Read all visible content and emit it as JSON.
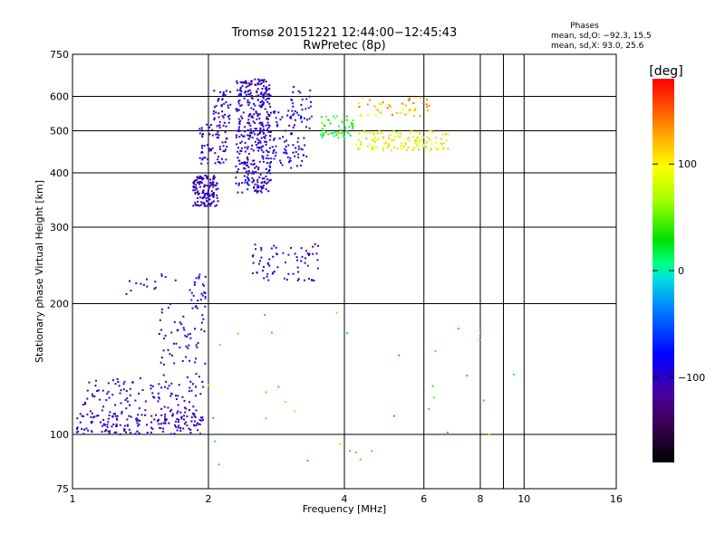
{
  "header": {
    "title_line1": "Tromsø 20151221 12:44:00−12:45:43",
    "title_line2": "RwPretec (8p)"
  },
  "phase_info": {
    "heading": "Phases",
    "line_o": "mean, sd,O: −92.3, 15.5",
    "line_x": "mean, sd,X:  93.0, 25.6"
  },
  "colorbar": {
    "unit": "[deg]",
    "ticks": [
      {
        "value": 100,
        "label": "100"
      },
      {
        "value": 0,
        "label": "0"
      },
      {
        "value": -100,
        "label": "−100"
      }
    ],
    "range": [
      -180,
      180
    ]
  },
  "chart_data": {
    "type": "scatter",
    "title": "Tromsø 20151221 12:44:00−12:45:43",
    "subtitle": "RwPretec (8p)",
    "xlabel": "Frequency [MHz]",
    "ylabel": "Stationary phase Virtual Height [km]",
    "x_scale": "log",
    "y_scale": "log",
    "xlim": [
      1,
      16
    ],
    "ylim": [
      75,
      750
    ],
    "x_ticks": [
      {
        "value": 1,
        "label": "1"
      },
      {
        "value": 2,
        "label": "2"
      },
      {
        "value": 4,
        "label": "4"
      },
      {
        "value": 6,
        "label": "6"
      },
      {
        "value": 8,
        "label": "8"
      },
      {
        "value": 10,
        "label": "10"
      },
      {
        "value": 16,
        "label": "16"
      }
    ],
    "x_gridlines": [
      1,
      2,
      4,
      6,
      8,
      9,
      10,
      16
    ],
    "y_ticks": [
      {
        "value": 75,
        "label": "75"
      },
      {
        "value": 100,
        "label": "100"
      },
      {
        "value": 200,
        "label": "200"
      },
      {
        "value": 300,
        "label": "300"
      },
      {
        "value": 400,
        "label": "400"
      },
      {
        "value": 500,
        "label": "500"
      },
      {
        "value": 600,
        "label": "600"
      },
      {
        "value": 750,
        "label": "750"
      }
    ],
    "y_gridlines": [
      100,
      200,
      300,
      400,
      500,
      600
    ],
    "grid": true,
    "colorscale": "rainbow phase [deg]",
    "clusters": [
      {
        "x_range": [
          1.02,
          1.95
        ],
        "y_range": [
          100,
          112
        ],
        "phase": -105,
        "n": 160
      },
      {
        "x_range": [
          1.05,
          1.95
        ],
        "y_range": [
          110,
          135
        ],
        "phase": -100,
        "n": 120
      },
      {
        "x_range": [
          1.55,
          1.98
        ],
        "y_range": [
          135,
          200
        ],
        "phase": -100,
        "n": 60
      },
      {
        "x_range": [
          1.82,
          1.98
        ],
        "y_range": [
          195,
          235
        ],
        "phase": -80,
        "n": 25
      },
      {
        "x_range": [
          1.85,
          2.1
        ],
        "y_range": [
          335,
          395
        ],
        "phase": -105,
        "n": 140
      },
      {
        "x_range": [
          1.9,
          2.2
        ],
        "y_range": [
          420,
          520
        ],
        "phase": -100,
        "n": 70
      },
      {
        "x_range": [
          2.05,
          2.25
        ],
        "y_range": [
          520,
          620
        ],
        "phase": -100,
        "n": 40
      },
      {
        "x_range": [
          2.3,
          2.75
        ],
        "y_range": [
          360,
          660
        ],
        "phase": -100,
        "n": 380
      },
      {
        "x_range": [
          2.7,
          3.3
        ],
        "y_range": [
          410,
          560
        ],
        "phase": -95,
        "n": 90
      },
      {
        "x_range": [
          3.05,
          3.4
        ],
        "y_range": [
          500,
          640
        ],
        "phase": -90,
        "n": 30
      },
      {
        "x_range": [
          3.5,
          4.2
        ],
        "y_range": [
          480,
          540
        ],
        "phase": 30,
        "n": 55
      },
      {
        "x_range": [
          4.2,
          6.8
        ],
        "y_range": [
          450,
          500
        ],
        "phase": 90,
        "n": 130
      },
      {
        "x_range": [
          4.3,
          6.2
        ],
        "y_range": [
          540,
          600
        ],
        "phase": 120,
        "n": 50
      },
      {
        "x_range": [
          2.5,
          3.5
        ],
        "y_range": [
          225,
          275
        ],
        "phase": -95,
        "n": 70
      },
      {
        "x_range": [
          1.3,
          1.75
        ],
        "y_range": [
          210,
          235
        ],
        "phase": -100,
        "n": 15
      },
      {
        "x_range": [
          2.0,
          10.0
        ],
        "y_range": [
          85,
          200
        ],
        "phase": 40,
        "n": 35
      }
    ]
  }
}
